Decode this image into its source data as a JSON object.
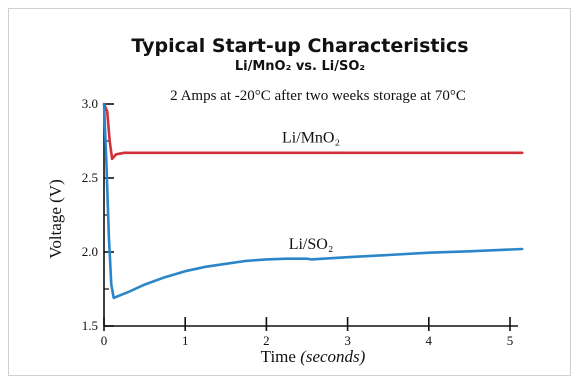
{
  "chart_data": {
    "type": "line",
    "title": "Typical Start-up Characteristics",
    "title_line2": "Li/MnO₂ vs. Li/SO₂",
    "subtitle": "2 Amps at -20°C after two weeks storage at 70°C",
    "xlabel_text": "Time ",
    "xlabel_unit": "(seconds)",
    "ylabel": "Voltage (V)",
    "xlim": [
      0,
      5
    ],
    "ylim": [
      1.5,
      3.0
    ],
    "x_ticks": [
      "0",
      "1",
      "2",
      "3",
      "4",
      "5"
    ],
    "y_ticks": [
      "1.5",
      "2.0",
      "2.5",
      "3.0"
    ],
    "grid": false,
    "series": [
      {
        "name": "Li/MnO₂",
        "color": "#d32f3a",
        "points": [
          [
            0.0,
            3.0
          ],
          [
            0.04,
            2.95
          ],
          [
            0.07,
            2.75
          ],
          [
            0.1,
            2.63
          ],
          [
            0.15,
            2.66
          ],
          [
            0.25,
            2.67
          ],
          [
            1.0,
            2.67
          ],
          [
            2.0,
            2.67
          ],
          [
            3.0,
            2.67
          ],
          [
            4.0,
            2.67
          ],
          [
            5.15,
            2.67
          ]
        ]
      },
      {
        "name": "Li/SO₂",
        "color": "#2a86c8",
        "points": [
          [
            0.0,
            3.0
          ],
          [
            0.03,
            2.6
          ],
          [
            0.06,
            2.1
          ],
          [
            0.09,
            1.78
          ],
          [
            0.12,
            1.69
          ],
          [
            0.3,
            1.73
          ],
          [
            0.5,
            1.78
          ],
          [
            0.75,
            1.83
          ],
          [
            1.0,
            1.87
          ],
          [
            1.25,
            1.9
          ],
          [
            1.5,
            1.92
          ],
          [
            1.75,
            1.94
          ],
          [
            2.0,
            1.95
          ],
          [
            2.25,
            1.955
          ],
          [
            2.5,
            1.955
          ],
          [
            2.55,
            1.95
          ],
          [
            3.0,
            1.965
          ],
          [
            3.5,
            1.98
          ],
          [
            4.0,
            1.995
          ],
          [
            4.5,
            2.005
          ],
          [
            5.15,
            2.02
          ]
        ]
      }
    ]
  }
}
